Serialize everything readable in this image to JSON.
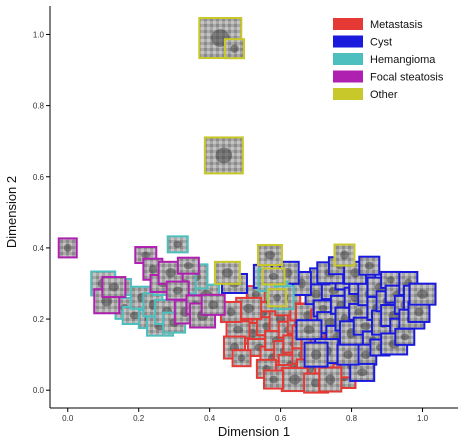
{
  "chart_data": {
    "type": "scatter",
    "xlabel": "Dimension 1",
    "ylabel": "Dimension 2",
    "xlim": [
      -0.05,
      1.1
    ],
    "ylim": [
      -0.05,
      1.08
    ],
    "x_ticks": [
      "0.0",
      "0.2",
      "0.4",
      "0.6",
      "0.8",
      "1.0"
    ],
    "y_ticks": [
      "0.0",
      "0.2",
      "0.4",
      "0.6",
      "0.8",
      "1.0"
    ],
    "grid": false,
    "legend_position": "top-right",
    "marker": "image thumbnail with colored border",
    "series": [
      {
        "name": "Metastasis",
        "color": "#e53935",
        "points": [
          [
            0.5,
            0.2
          ],
          [
            0.52,
            0.16
          ],
          [
            0.54,
            0.12
          ],
          [
            0.55,
            0.22
          ],
          [
            0.56,
            0.18
          ],
          [
            0.58,
            0.09
          ],
          [
            0.59,
            0.14
          ],
          [
            0.6,
            0.2
          ],
          [
            0.61,
            0.11
          ],
          [
            0.62,
            0.17
          ],
          [
            0.63,
            0.07
          ],
          [
            0.64,
            0.13
          ],
          [
            0.65,
            0.19
          ],
          [
            0.66,
            0.1
          ],
          [
            0.67,
            0.15
          ],
          [
            0.68,
            0.06
          ],
          [
            0.69,
            0.12
          ],
          [
            0.7,
            0.18
          ],
          [
            0.71,
            0.09
          ],
          [
            0.72,
            0.14
          ],
          [
            0.73,
            0.05
          ],
          [
            0.74,
            0.11
          ],
          [
            0.75,
            0.16
          ],
          [
            0.76,
            0.08
          ],
          [
            0.77,
            0.13
          ],
          [
            0.78,
            0.04
          ],
          [
            0.57,
            0.25
          ],
          [
            0.53,
            0.27
          ],
          [
            0.62,
            0.24
          ],
          [
            0.66,
            0.22
          ],
          [
            0.6,
            0.04
          ],
          [
            0.56,
            0.06
          ],
          [
            0.64,
            0.03
          ],
          [
            0.7,
            0.02
          ],
          [
            0.8,
            0.07
          ],
          [
            0.82,
            0.11
          ],
          [
            0.79,
            0.15
          ],
          [
            0.51,
            0.23
          ],
          [
            0.48,
            0.17
          ],
          [
            0.47,
            0.12
          ],
          [
            0.58,
            0.03
          ],
          [
            0.68,
            0.21
          ],
          [
            0.72,
            0.2
          ],
          [
            0.74,
            0.03
          ],
          [
            0.46,
            0.22
          ],
          [
            0.49,
            0.09
          ]
        ]
      },
      {
        "name": "Cyst",
        "color": "#1a1adc",
        "points": [
          [
            0.7,
            0.27
          ],
          [
            0.72,
            0.23
          ],
          [
            0.74,
            0.19
          ],
          [
            0.75,
            0.28
          ],
          [
            0.76,
            0.15
          ],
          [
            0.77,
            0.24
          ],
          [
            0.78,
            0.2
          ],
          [
            0.79,
            0.31
          ],
          [
            0.8,
            0.16
          ],
          [
            0.81,
            0.26
          ],
          [
            0.82,
            0.22
          ],
          [
            0.83,
            0.3
          ],
          [
            0.84,
            0.18
          ],
          [
            0.85,
            0.27
          ],
          [
            0.86,
            0.14
          ],
          [
            0.87,
            0.23
          ],
          [
            0.88,
            0.29
          ],
          [
            0.89,
            0.19
          ],
          [
            0.9,
            0.25
          ],
          [
            0.91,
            0.31
          ],
          [
            0.92,
            0.21
          ],
          [
            0.93,
            0.27
          ],
          [
            0.94,
            0.17
          ],
          [
            0.95,
            0.24
          ],
          [
            0.96,
            0.3
          ],
          [
            0.97,
            0.2
          ],
          [
            0.98,
            0.26
          ],
          [
            0.99,
            0.22
          ],
          [
            0.71,
            0.32
          ],
          [
            0.74,
            0.33
          ],
          [
            0.77,
            0.35
          ],
          [
            0.81,
            0.33
          ],
          [
            0.85,
            0.35
          ],
          [
            0.66,
            0.3
          ],
          [
            0.68,
            0.17
          ],
          [
            0.73,
            0.11
          ],
          [
            0.84,
            0.1
          ],
          [
            0.88,
            0.12
          ],
          [
            0.92,
            0.13
          ],
          [
            0.83,
            0.05
          ],
          [
            0.62,
            0.33
          ],
          [
            0.57,
            0.34
          ],
          [
            0.55,
            0.32
          ],
          [
            0.47,
            0.3
          ],
          [
            0.7,
            0.1
          ],
          [
            0.79,
            0.1
          ],
          [
            0.95,
            0.15
          ],
          [
            1.0,
            0.27
          ]
        ]
      },
      {
        "name": "Hemangioma",
        "color": "#4dbfbf",
        "points": [
          [
            0.1,
            0.3
          ],
          [
            0.13,
            0.27
          ],
          [
            0.15,
            0.29
          ],
          [
            0.16,
            0.23
          ],
          [
            0.19,
            0.21
          ],
          [
            0.21,
            0.26
          ],
          [
            0.23,
            0.2
          ],
          [
            0.24,
            0.24
          ],
          [
            0.26,
            0.18
          ],
          [
            0.28,
            0.22
          ],
          [
            0.3,
            0.19
          ],
          [
            0.31,
            0.41
          ],
          [
            0.33,
            0.26
          ],
          [
            0.35,
            0.23
          ],
          [
            0.57,
            0.31
          ],
          [
            0.59,
            0.28
          ],
          [
            0.61,
            0.26
          ],
          [
            0.39,
            0.27
          ],
          [
            0.36,
            0.32
          ],
          [
            0.33,
            0.3
          ],
          [
            0.27,
            0.29
          ]
        ]
      },
      {
        "name": "Focal steatosis",
        "color": "#b020b0",
        "points": [
          [
            0.0,
            0.4
          ],
          [
            0.11,
            0.25
          ],
          [
            0.13,
            0.29
          ],
          [
            0.22,
            0.38
          ],
          [
            0.24,
            0.34
          ],
          [
            0.27,
            0.3
          ],
          [
            0.29,
            0.33
          ],
          [
            0.31,
            0.28
          ],
          [
            0.33,
            0.22
          ],
          [
            0.36,
            0.24
          ],
          [
            0.38,
            0.21
          ],
          [
            0.41,
            0.24
          ],
          [
            0.34,
            0.35
          ]
        ]
      },
      {
        "name": "Other",
        "color": "#c8c82a",
        "points": [
          [
            0.43,
            0.99
          ],
          [
            0.47,
            0.96
          ],
          [
            0.44,
            0.66
          ],
          [
            0.57,
            0.38
          ],
          [
            0.58,
            0.32
          ],
          [
            0.78,
            0.38
          ],
          [
            0.59,
            0.26
          ],
          [
            0.45,
            0.33
          ]
        ]
      }
    ]
  }
}
